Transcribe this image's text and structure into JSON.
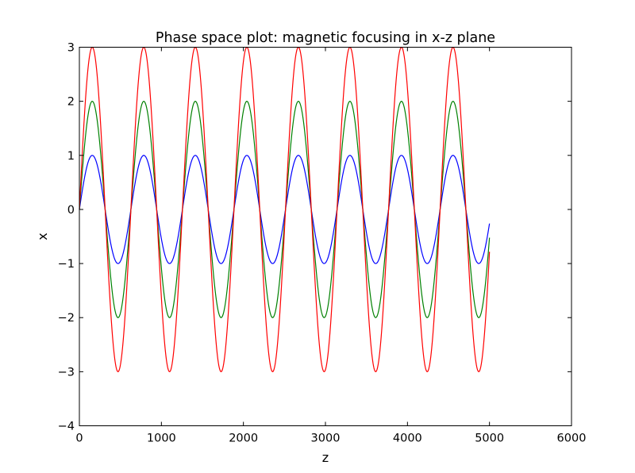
{
  "chart_data": {
    "type": "line",
    "title": "Phase space plot: magnetic focusing in x-z plane",
    "xlabel": "z",
    "ylabel": "x",
    "xlim": [
      0,
      6000
    ],
    "ylim": [
      -4,
      3
    ],
    "xticks": [
      "0",
      "1000",
      "2000",
      "3000",
      "4000",
      "5000",
      "6000"
    ],
    "yticks": [
      "−4",
      "−3",
      "−2",
      "−1",
      "0",
      "1",
      "2",
      "3"
    ],
    "grid": false,
    "legend": "none",
    "curve_form": "x = amplitude * sin(2*pi*z / period)",
    "period": 628.3,
    "z_range": [
      0,
      5000
    ],
    "series": [
      {
        "amplitude": 1,
        "color": "#0000ff"
      },
      {
        "amplitude": 2,
        "color": "#008000"
      },
      {
        "amplitude": 3,
        "color": "#ff0000"
      }
    ]
  }
}
